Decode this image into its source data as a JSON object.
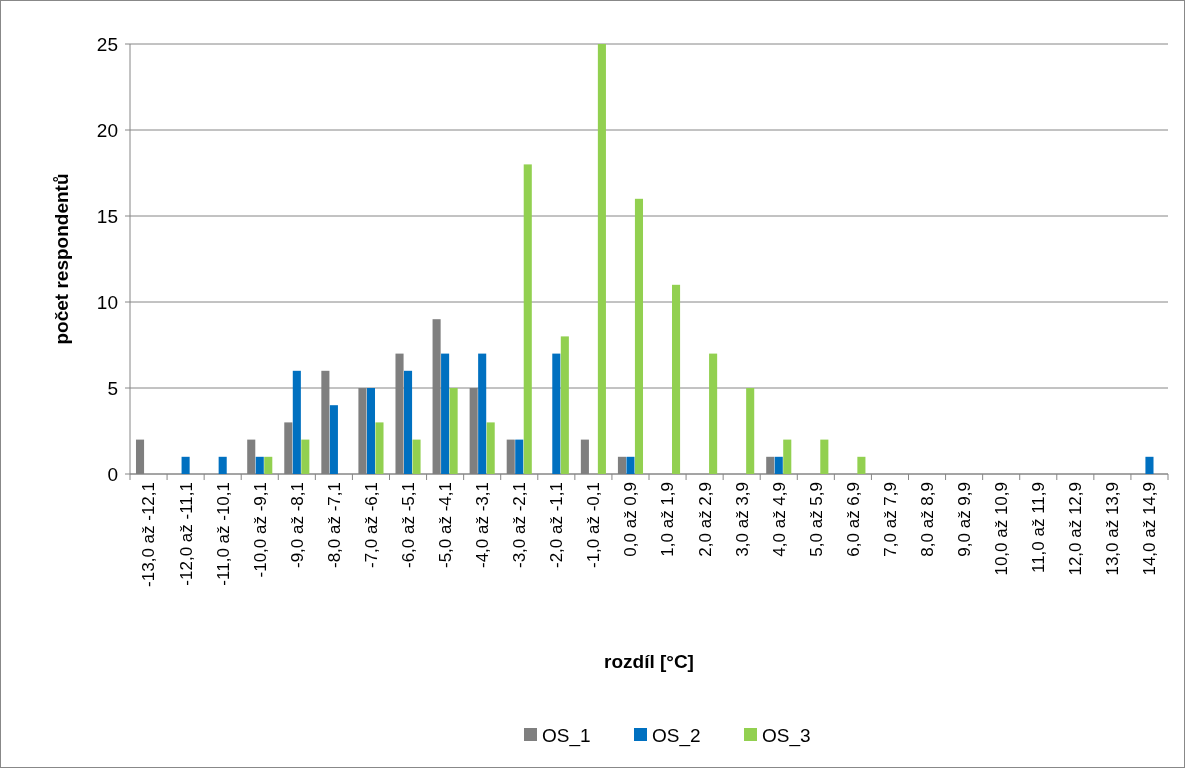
{
  "chart_data": {
    "type": "bar",
    "xlabel": "rozdíl [°C]",
    "ylabel": "počet respondentů",
    "categories": [
      "-13,0 až -12,1",
      "-12,0 až -11,1",
      "-11,0 až -10,1",
      "-10,0 až -9,1",
      "-9,0 až -8,1",
      "-8,0 až -7,1",
      "-7,0 až -6,1",
      "-6,0 až -5,1",
      "-5,0 až -4,1",
      "-4,0 až -3,1",
      "-3,0 až -2,1",
      "-2,0 až -1,1",
      "-1,0 až -0,1",
      "0,0 až 0,9",
      "1,0 až 1,9",
      "2,0 až 2,9",
      "3,0 až 3,9",
      "4,0 až 4,9",
      "5,0 až 5,9",
      "6,0 až 6,9",
      "7,0 až 7,9",
      "8,0 až 8,9",
      "9,0 až 9,9",
      "10,0 až 10,9",
      "11,0 až 11,9",
      "12,0 až 12,9",
      "13,0 až 13,9",
      "14,0 až 14,9"
    ],
    "series": [
      {
        "name": "OS_1",
        "color": "#7f7f7f",
        "values": [
          2,
          0,
          0,
          2,
          3,
          6,
          5,
          7,
          9,
          5,
          2,
          0,
          2,
          1,
          0,
          0,
          0,
          1,
          0,
          0,
          0,
          0,
          0,
          0,
          0,
          0,
          0,
          0
        ]
      },
      {
        "name": "OS_2",
        "color": "#0070c0",
        "values": [
          0,
          1,
          1,
          1,
          6,
          4,
          5,
          6,
          7,
          7,
          2,
          7,
          0,
          1,
          0,
          0,
          0,
          1,
          0,
          0,
          0,
          0,
          0,
          0,
          0,
          0,
          0,
          1
        ]
      },
      {
        "name": "OS_3",
        "color": "#92d050",
        "values": [
          0,
          0,
          0,
          1,
          2,
          0,
          3,
          2,
          5,
          3,
          18,
          8,
          25,
          16,
          11,
          7,
          5,
          2,
          2,
          1,
          0,
          0,
          0,
          0,
          0,
          0,
          0,
          0
        ]
      }
    ],
    "ylim": [
      0,
      25
    ],
    "yticks": [
      0,
      5,
      10,
      15,
      20,
      25
    ],
    "grid": "y",
    "legend": "bottom"
  }
}
